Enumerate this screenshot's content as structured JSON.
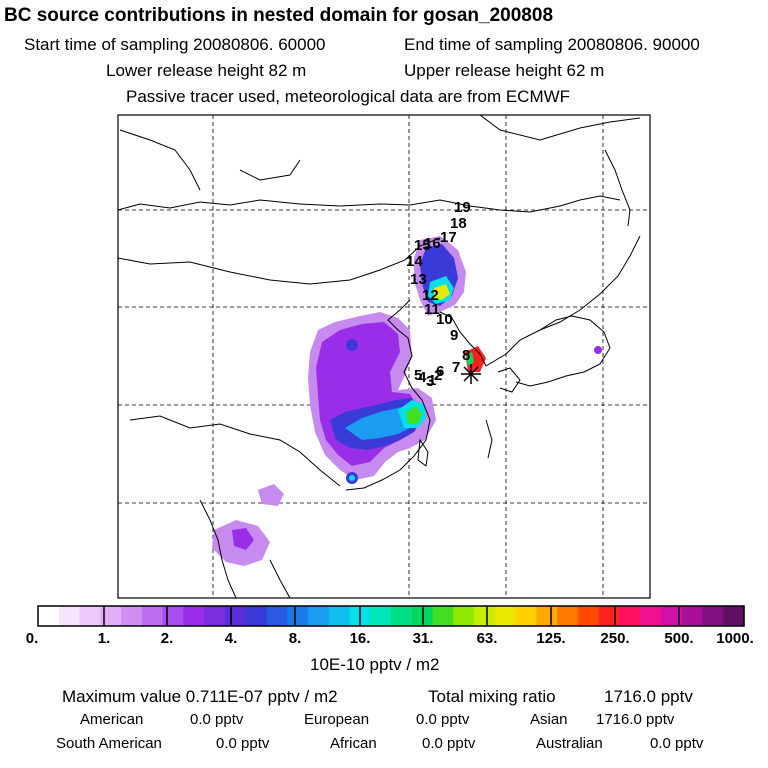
{
  "header": {
    "title": "BC  source contributions in nested domain for gosan_200808",
    "start_time": "Start time of sampling 20080806. 60000",
    "end_time": "End time of sampling 20080806. 90000",
    "lower_height": "Lower release height   82 m",
    "upper_height": "Upper release height   62 m",
    "note": "Passive tracer used, meteorological data are from ECMWF"
  },
  "map": {
    "trajectory_labels": [
      "1",
      "2",
      "3",
      "4",
      "5",
      "6",
      "7",
      "8",
      "9",
      "10",
      "11",
      "12",
      "13",
      "14",
      "15",
      "16",
      "17",
      "18",
      "19"
    ],
    "receptor_marker": "star-icon",
    "plume_colors": [
      "#c78bf0",
      "#9a2ee8",
      "#3a3ad8",
      "#1a9cf0",
      "#00e0e8",
      "#00d860",
      "#e8e800",
      "#ff2020"
    ]
  },
  "colorbar": {
    "colors": [
      "#ffffff",
      "#f6e4fb",
      "#ecc9f8",
      "#e2aef5",
      "#d08ef2",
      "#be6ef0",
      "#a94eec",
      "#9a2ee8",
      "#7a2ee2",
      "#5b2edc",
      "#3a3ad8",
      "#2a5ae0",
      "#1a7ae8",
      "#1a9cf0",
      "#10bef2",
      "#00e0e8",
      "#00e8b8",
      "#00e088",
      "#00d860",
      "#40e020",
      "#90e800",
      "#c8ec00",
      "#e8e800",
      "#ffd000",
      "#ffa800",
      "#ff7a00",
      "#ff4a00",
      "#ff2020",
      "#ff1060",
      "#f01090",
      "#d010a8",
      "#a81098",
      "#801080",
      "#601060"
    ],
    "ticks": [
      "0.",
      "1.",
      "2.",
      "4.",
      "8.",
      "16.",
      "31.",
      "63.",
      "125.",
      "250.",
      "500.",
      "1000."
    ],
    "units": "10E-10 pptv / m2"
  },
  "stats": {
    "max_label": "Maximum value  0.711E-07 pptv / m2",
    "total_label": "Total mixing ratio",
    "total_value": "1716.0 pptv",
    "american_label": "American",
    "american_value": "0.0 pptv",
    "european_label": "European",
    "european_value": "0.0 pptv",
    "asian_label": "Asian",
    "asian_value": "1716.0 pptv",
    "south_american_label": "South American",
    "south_american_value": "0.0 pptv",
    "african_label": "African",
    "african_value": "0.0 pptv",
    "australian_label": "Australian",
    "australian_value": "0.0 pptv"
  }
}
